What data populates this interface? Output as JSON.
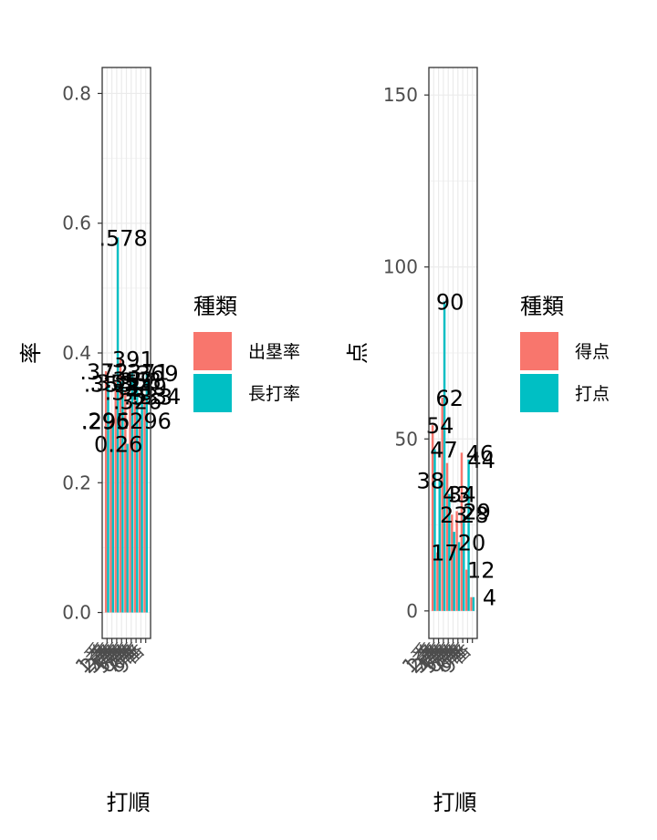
{
  "chart_data": [
    {
      "type": "bar",
      "xlabel": "打順",
      "ylabel": "率",
      "ylim": [
        -0.04,
        0.84
      ],
      "yticks": [
        0.0,
        0.2,
        0.4,
        0.6,
        0.8
      ],
      "ytick_labels": [
        "0.0",
        "0.2",
        "0.4",
        "0.6",
        "0.8"
      ],
      "legend_title": "種類",
      "legend_position": "right",
      "grid": true,
      "categories": [
        "1",
        "2",
        "3",
        "4",
        "5",
        "6",
        "7",
        "8",
        "9"
      ],
      "category_labels": [
        "1番",
        "2番",
        "3番",
        "4番",
        "5番",
        "6番",
        "7番",
        "8番",
        "9番"
      ],
      "series": [
        {
          "name": "出塁率",
          "color": "#F8766D",
          "values": [
            0.372,
            0.296,
            0.355,
            0.391,
            0.34,
            0.326,
            0.358,
            0.296,
            0.333
          ]
        },
        {
          "name": "長打率",
          "color": "#00BFC4",
          "values": [
            0.353,
            0.295,
            0.578,
            0.359,
            0.26,
            0.371,
            0.349,
            0.334,
            0.369
          ]
        }
      ],
      "value_labels": [
        {
          "text": ".372"
        },
        {
          "text": ".296"
        },
        {
          "text": ".355"
        },
        {
          "text": ".391"
        },
        {
          "text": ".340"
        },
        {
          "text": ".326"
        },
        {
          "text": ".358"
        },
        {
          "text": ".296"
        },
        {
          "text": ".333"
        },
        {
          "text": ".353"
        },
        {
          "text": ".295"
        },
        {
          "text": ".578"
        },
        {
          "text": ".359"
        },
        {
          "text": "0.26"
        },
        {
          "text": ".371"
        },
        {
          "text": ".349"
        },
        {
          "text": ".334"
        },
        {
          "text": ".369"
        }
      ]
    },
    {
      "type": "bar",
      "xlabel": "打順",
      "ylabel": "点",
      "ylim": [
        -8,
        158
      ],
      "yticks": [
        0,
        50,
        100,
        150
      ],
      "ytick_labels": [
        "0",
        "50",
        "100",
        "150"
      ],
      "legend_title": "種類",
      "legend_position": "right",
      "grid": true,
      "categories": [
        "1",
        "2",
        "3",
        "4",
        "5",
        "6",
        "7",
        "8",
        "9"
      ],
      "category_labels": [
        "1番",
        "2番",
        "3番",
        "4番",
        "5番",
        "6番",
        "7番",
        "8番",
        "9番"
      ],
      "series": [
        {
          "name": "得点",
          "color": "#F8766D",
          "values": [
            54,
            17,
            62,
            43,
            28,
            29,
            46,
            12,
            4
          ]
        },
        {
          "name": "打点",
          "color": "#00BFC4",
          "values": [
            47,
            38,
            90,
            34,
            23,
            20,
            28,
            44,
            4
          ]
        }
      ],
      "value_labels": [
        {
          "text": "54"
        },
        {
          "text": "47"
        },
        {
          "text": "43"
        },
        {
          "text": "38"
        },
        {
          "text": "17"
        },
        {
          "text": "62"
        },
        {
          "text": "90"
        },
        {
          "text": "34"
        },
        {
          "text": "29"
        },
        {
          "text": "28"
        },
        {
          "text": "23"
        },
        {
          "text": "20"
        },
        {
          "text": "46"
        },
        {
          "text": "44"
        },
        {
          "text": "12"
        },
        {
          "text": "4"
        }
      ]
    }
  ]
}
